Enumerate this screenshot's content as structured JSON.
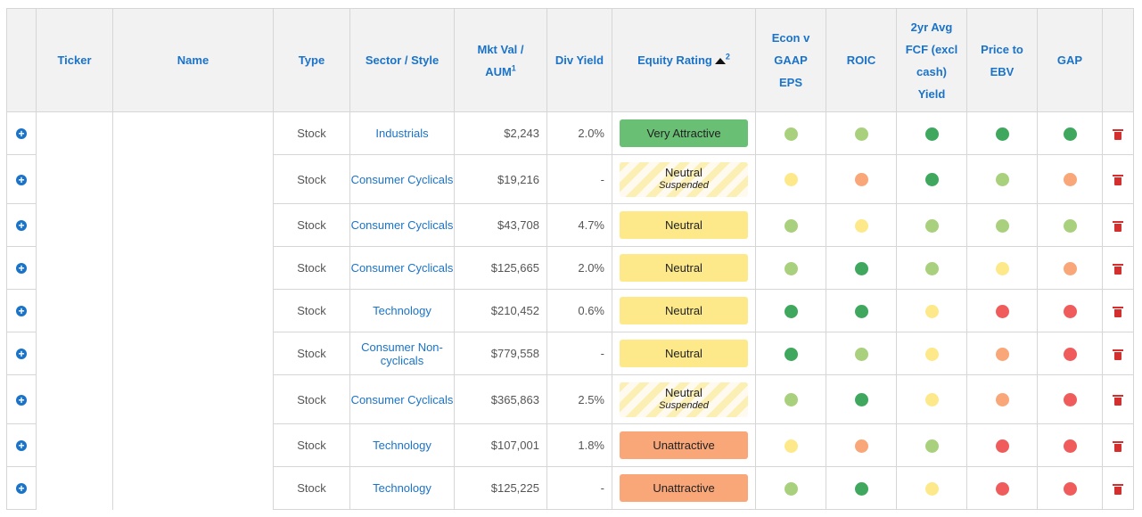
{
  "headers": {
    "expand": "",
    "ticker": "Ticker",
    "name": "Name",
    "type": "Type",
    "sector": "Sector / Style",
    "mktval": "Mkt Val /",
    "mktval2": "AUM",
    "mktval_sup": "1",
    "divyield": "Div Yield",
    "rating": "Equity Rating",
    "rating_sup": "2",
    "econ": "Econ v GAAP EPS",
    "roic": "ROIC",
    "fcf": "2yr Avg FCF (excl cash) Yield",
    "price": "Price to EBV",
    "gap": "GAP",
    "delete": ""
  },
  "icons": {
    "expand": "plus-circle-icon",
    "delete": "trash-icon",
    "sort": "sort-ascending-icon"
  },
  "colors": {
    "header_text": "#1a73c8",
    "dark_green": "#3fa85e",
    "light_green": "#a9d17d",
    "yellow": "#fde98a",
    "orange": "#f9a678",
    "red": "#f05c5c",
    "delete_red": "#d32f2f"
  },
  "rows": [
    {
      "type": "Stock",
      "sector": "Industrials",
      "mktval": "$2,243",
      "divyield": "2.0%",
      "rating": "Very Attractive",
      "rating_style": "va",
      "rating_sub": "",
      "econ": "light_green",
      "roic": "light_green",
      "fcf": "dark_green",
      "price": "dark_green",
      "gap": "dark_green"
    },
    {
      "type": "Stock",
      "sector": "Consumer Cyclicals",
      "mktval": "$19,216",
      "divyield": "-",
      "rating": "Neutral",
      "rating_style": "sus",
      "rating_sub": "Suspended",
      "econ": "yellow",
      "roic": "orange",
      "fcf": "dark_green",
      "price": "light_green",
      "gap": "orange"
    },
    {
      "type": "Stock",
      "sector": "Consumer Cyclicals",
      "mktval": "$43,708",
      "divyield": "4.7%",
      "rating": "Neutral",
      "rating_style": "neu",
      "rating_sub": "",
      "econ": "light_green",
      "roic": "yellow",
      "fcf": "light_green",
      "price": "light_green",
      "gap": "light_green"
    },
    {
      "type": "Stock",
      "sector": "Consumer Cyclicals",
      "mktval": "$125,665",
      "divyield": "2.0%",
      "rating": "Neutral",
      "rating_style": "neu",
      "rating_sub": "",
      "econ": "light_green",
      "roic": "dark_green",
      "fcf": "light_green",
      "price": "yellow",
      "gap": "orange"
    },
    {
      "type": "Stock",
      "sector": "Technology",
      "mktval": "$210,452",
      "divyield": "0.6%",
      "rating": "Neutral",
      "rating_style": "neu",
      "rating_sub": "",
      "econ": "dark_green",
      "roic": "dark_green",
      "fcf": "yellow",
      "price": "red",
      "gap": "red"
    },
    {
      "type": "Stock",
      "sector": "Consumer Non-cyclicals",
      "mktval": "$779,558",
      "divyield": "-",
      "rating": "Neutral",
      "rating_style": "neu",
      "rating_sub": "",
      "econ": "dark_green",
      "roic": "light_green",
      "fcf": "yellow",
      "price": "orange",
      "gap": "red"
    },
    {
      "type": "Stock",
      "sector": "Consumer Cyclicals",
      "mktval": "$365,863",
      "divyield": "2.5%",
      "rating": "Neutral",
      "rating_style": "sus",
      "rating_sub": "Suspended",
      "econ": "light_green",
      "roic": "dark_green",
      "fcf": "yellow",
      "price": "orange",
      "gap": "red"
    },
    {
      "type": "Stock",
      "sector": "Technology",
      "mktval": "$107,001",
      "divyield": "1.8%",
      "rating": "Unattractive",
      "rating_style": "un",
      "rating_sub": "",
      "econ": "yellow",
      "roic": "orange",
      "fcf": "light_green",
      "price": "red",
      "gap": "red"
    },
    {
      "type": "Stock",
      "sector": "Technology",
      "mktval": "$125,225",
      "divyield": "-",
      "rating": "Unattractive",
      "rating_style": "un",
      "rating_sub": "",
      "econ": "light_green",
      "roic": "dark_green",
      "fcf": "yellow",
      "price": "red",
      "gap": "red"
    }
  ]
}
